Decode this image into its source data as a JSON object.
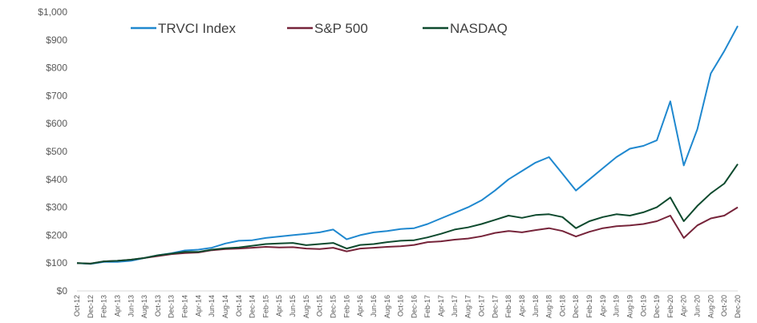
{
  "chart_data": {
    "type": "line",
    "title": "",
    "xlabel": "",
    "ylabel": "",
    "ylim": [
      0,
      1000
    ],
    "yticks": [
      0,
      100,
      200,
      300,
      400,
      500,
      600,
      700,
      800,
      900,
      1000
    ],
    "ytick_labels": [
      "$0",
      "$100",
      "$200",
      "$300",
      "$400",
      "$500",
      "$600",
      "$700",
      "$800",
      "$900",
      "$1,000"
    ],
    "grid": false,
    "legend_position": "top",
    "x": [
      "Oct-12",
      "Dec-12",
      "Feb-13",
      "Apr-13",
      "Jun-13",
      "Aug-13",
      "Oct-13",
      "Dec-13",
      "Feb-14",
      "Apr-14",
      "Jun-14",
      "Aug-14",
      "Oct-14",
      "Dec-14",
      "Feb-15",
      "Apr-15",
      "Jun-15",
      "Aug-15",
      "Oct-15",
      "Dec-15",
      "Feb-16",
      "Apr-16",
      "Jun-16",
      "Aug-16",
      "Oct-16",
      "Dec-16",
      "Feb-17",
      "Apr-17",
      "Jun-17",
      "Aug-17",
      "Oct-17",
      "Dec-17",
      "Feb-18",
      "Apr-18",
      "Jun-18",
      "Aug-18",
      "Oct-18",
      "Dec-18",
      "Feb-19",
      "Apr-19",
      "Jun-19",
      "Aug-19",
      "Oct-19",
      "Dec-19",
      "Feb-20",
      "Apr-20",
      "Jun-20",
      "Aug-20",
      "Oct-20",
      "Dec-20"
    ],
    "series": [
      {
        "name": "TRVCI Index",
        "color": "#1f88cf",
        "values": [
          100,
          97,
          104,
          104,
          108,
          118,
          128,
          135,
          145,
          148,
          155,
          170,
          180,
          182,
          190,
          195,
          200,
          205,
          210,
          220,
          185,
          200,
          210,
          215,
          222,
          225,
          240,
          260,
          280,
          300,
          325,
          360,
          400,
          430,
          460,
          480,
          420,
          360,
          400,
          440,
          480,
          510,
          520,
          540,
          680,
          450,
          580,
          780,
          860,
          950
        ]
      },
      {
        "name": "S&P 500",
        "color": "#76243a",
        "values": [
          100,
          98,
          106,
          108,
          112,
          118,
          125,
          132,
          136,
          138,
          146,
          150,
          152,
          155,
          158,
          156,
          157,
          152,
          150,
          155,
          142,
          152,
          155,
          158,
          160,
          165,
          175,
          178,
          184,
          188,
          196,
          208,
          215,
          210,
          218,
          225,
          215,
          195,
          212,
          225,
          232,
          235,
          240,
          250,
          270,
          190,
          235,
          260,
          270,
          300
        ]
      },
      {
        "name": "NASDAQ",
        "color": "#0e4a2e",
        "values": [
          100,
          98,
          106,
          108,
          112,
          118,
          128,
          134,
          140,
          140,
          148,
          153,
          156,
          162,
          168,
          170,
          172,
          164,
          168,
          172,
          152,
          165,
          168,
          175,
          180,
          182,
          192,
          205,
          220,
          228,
          240,
          255,
          270,
          262,
          272,
          275,
          265,
          225,
          250,
          265,
          275,
          270,
          282,
          300,
          335,
          250,
          305,
          350,
          385,
          455
        ]
      }
    ]
  }
}
